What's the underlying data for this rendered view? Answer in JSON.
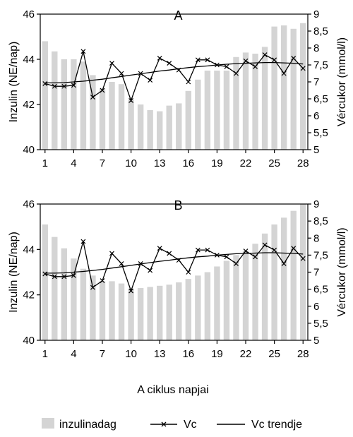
{
  "chart_data": [
    {
      "type": "bar+line",
      "title": "A",
      "xlabel": "",
      "ylabel_left": "Inzulin (NE/nap)",
      "ylabel_right": "Vércukor (mmol/l)",
      "x_tick_labels": [
        "1",
        "4",
        "7",
        "10",
        "13",
        "16",
        "19",
        "22",
        "25",
        "28"
      ],
      "y_left_ticks": [
        "40",
        "42",
        "44",
        "46"
      ],
      "y_right_ticks": [
        "5",
        "5,5",
        "6",
        "6,5",
        "7",
        "7,5",
        "8",
        "8,5",
        "9"
      ],
      "ylim_left": [
        40,
        46
      ],
      "ylim_right": [
        5,
        9
      ],
      "days": [
        1,
        2,
        3,
        4,
        5,
        6,
        7,
        8,
        9,
        10,
        11,
        12,
        13,
        14,
        15,
        16,
        17,
        18,
        19,
        20,
        21,
        22,
        23,
        24,
        25,
        26,
        27,
        28
      ],
      "series": [
        {
          "name": "inzulinadag",
          "axis": "left",
          "kind": "bar",
          "values": [
            44.8,
            44.35,
            44.0,
            44.0,
            43.9,
            43.3,
            42.7,
            43.0,
            42.9,
            42.2,
            42.0,
            41.75,
            41.7,
            41.95,
            42.05,
            42.6,
            43.1,
            43.5,
            43.5,
            43.5,
            44.1,
            44.3,
            44.25,
            44.55,
            45.45,
            45.5,
            45.35,
            45.6
          ]
        },
        {
          "name": "Vc",
          "axis": "right",
          "kind": "line",
          "values": [
            6.95,
            6.87,
            6.87,
            6.9,
            7.9,
            6.55,
            6.75,
            7.55,
            7.25,
            6.45,
            7.25,
            7.05,
            7.7,
            7.55,
            7.35,
            7.0,
            7.65,
            7.65,
            7.5,
            7.45,
            7.25,
            7.62,
            7.45,
            7.8,
            7.65,
            7.25,
            7.7,
            7.4
          ]
        },
        {
          "name": "Vc trendje",
          "axis": "right",
          "kind": "trend",
          "values": [
            6.97,
            6.97,
            6.98,
            7.0,
            7.02,
            7.05,
            7.08,
            7.12,
            7.16,
            7.2,
            7.24,
            7.28,
            7.32,
            7.35,
            7.39,
            7.42,
            7.45,
            7.47,
            7.5,
            7.52,
            7.54,
            7.55,
            7.56,
            7.57,
            7.57,
            7.56,
            7.55,
            7.53
          ]
        }
      ]
    },
    {
      "type": "bar+line",
      "title": "B",
      "xlabel": "A ciklus napjai",
      "ylabel_left": "Inzulin (NE/nap)",
      "ylabel_right": "Vércukor (mmol/l)",
      "x_tick_labels": [
        "1",
        "4",
        "7",
        "10",
        "13",
        "16",
        "19",
        "22",
        "25",
        "28"
      ],
      "y_left_ticks": [
        "40",
        "42",
        "44",
        "46"
      ],
      "y_right_ticks": [
        "5",
        "5,5",
        "6",
        "6,5",
        "7",
        "7,5",
        "8",
        "8,5",
        "9"
      ],
      "ylim_left": [
        40,
        46
      ],
      "ylim_right": [
        5,
        9
      ],
      "days": [
        1,
        2,
        3,
        4,
        5,
        6,
        7,
        8,
        9,
        10,
        11,
        12,
        13,
        14,
        15,
        16,
        17,
        18,
        19,
        20,
        21,
        22,
        23,
        24,
        25,
        26,
        27,
        28
      ],
      "series": [
        {
          "name": "inzulinadag",
          "axis": "left",
          "kind": "bar",
          "values": [
            45.1,
            44.55,
            44.05,
            43.6,
            43.15,
            42.85,
            42.6,
            42.6,
            42.5,
            42.25,
            42.3,
            42.35,
            42.4,
            42.45,
            42.55,
            42.7,
            42.85,
            43.0,
            43.25,
            43.5,
            43.75,
            43.95,
            44.25,
            44.7,
            45.1,
            45.4,
            45.7,
            46.0
          ]
        },
        {
          "name": "Vc",
          "axis": "right",
          "kind": "line",
          "values": [
            6.95,
            6.87,
            6.87,
            6.9,
            7.9,
            6.55,
            6.75,
            7.55,
            7.25,
            6.45,
            7.25,
            7.05,
            7.7,
            7.55,
            7.35,
            7.0,
            7.65,
            7.65,
            7.5,
            7.45,
            7.25,
            7.62,
            7.45,
            7.8,
            7.65,
            7.25,
            7.7,
            7.4
          ]
        },
        {
          "name": "Vc trendje",
          "axis": "right",
          "kind": "trend",
          "values": [
            6.97,
            6.97,
            6.98,
            7.0,
            7.02,
            7.05,
            7.08,
            7.12,
            7.16,
            7.2,
            7.24,
            7.28,
            7.32,
            7.35,
            7.39,
            7.42,
            7.45,
            7.47,
            7.5,
            7.52,
            7.54,
            7.55,
            7.56,
            7.57,
            7.57,
            7.56,
            7.55,
            7.53
          ]
        }
      ]
    }
  ],
  "legend": {
    "bar_label": "inzulinadag",
    "line_label": "Vc",
    "trend_label": "Vc trendje"
  },
  "colors": {
    "bar": "#d4d4d4",
    "line": "#000000",
    "axis": "#000000"
  }
}
